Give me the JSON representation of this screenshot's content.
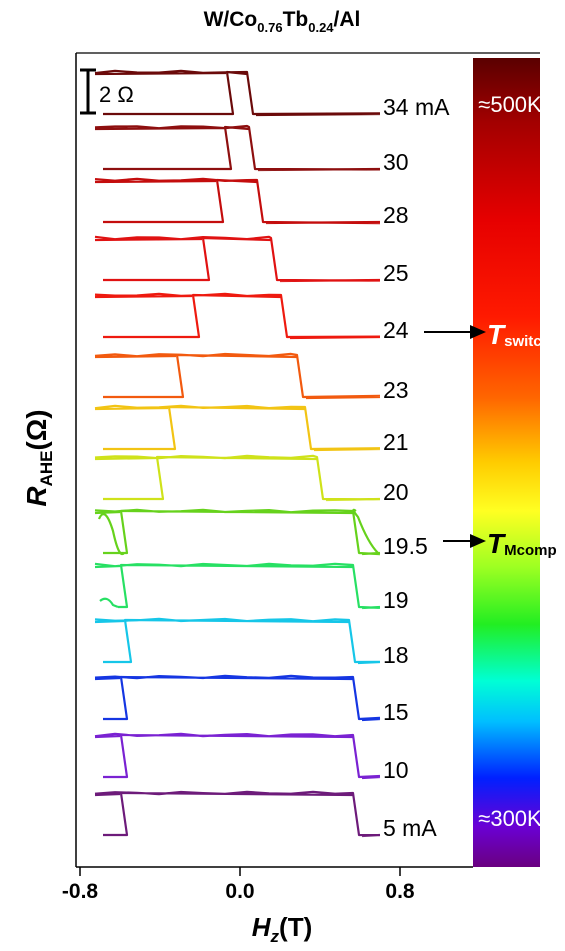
{
  "chart_data": {
    "type": "line",
    "title": "W/Co0.76Tb0.24/Al",
    "title_parts": {
      "base": "W/Co",
      "sub1": "0.76",
      "mid": "Tb",
      "sub2": "0.24",
      "tail": "/Al"
    },
    "xlabel": "Hz(T)",
    "xlabel_parts": {
      "main": "H",
      "sub": "z",
      "unit": "(T)"
    },
    "ylabel": "RAHE(Ω)",
    "ylabel_parts": {
      "main": "R",
      "sub": "AHE",
      "unit": "(Ω)"
    },
    "xlim": [
      -0.8,
      0.8
    ],
    "x_ticks": [
      -0.8,
      0.0,
      0.8
    ],
    "x_tick_labels": [
      "-0.8",
      "0.0",
      "0.8"
    ],
    "scale_bar": {
      "label": "2 Ω",
      "ohms": 2
    },
    "grid": false,
    "legend": "colorbar-right",
    "colorbar": {
      "top_label": "≈500K",
      "bottom_label": "≈300K"
    },
    "annotations": [
      {
        "at_curve": "24",
        "label_main": "T",
        "label_sub": "switch",
        "color": "#ffffff"
      },
      {
        "at_curve": "19.5",
        "label_main": "T",
        "label_sub": "Mcomp",
        "color": "#000000"
      }
    ],
    "series": [
      {
        "name": "34 mA",
        "label": "34 mA",
        "current_mA": 34,
        "coercive_T": 0.05,
        "color": "#6b0a0a",
        "tail": "none"
      },
      {
        "name": "30",
        "label": "30",
        "current_mA": 30,
        "coercive_T": 0.06,
        "color": "#8e0f0f",
        "tail": "none"
      },
      {
        "name": "28",
        "label": "28",
        "current_mA": 28,
        "coercive_T": 0.1,
        "color": "#c40d0d",
        "tail": "none"
      },
      {
        "name": "25",
        "label": "25",
        "current_mA": 25,
        "coercive_T": 0.17,
        "color": "#e01212",
        "tail": "none"
      },
      {
        "name": "24",
        "label": "24",
        "current_mA": 24,
        "coercive_T": 0.22,
        "color": "#ee1a0f",
        "tail": "none"
      },
      {
        "name": "23",
        "label": "23",
        "current_mA": 23,
        "coercive_T": 0.3,
        "color": "#f25a0f",
        "tail": "none"
      },
      {
        "name": "21",
        "label": "21",
        "current_mA": 21,
        "coercive_T": 0.34,
        "color": "#f2c414",
        "tail": "none"
      },
      {
        "name": "20",
        "label": "20",
        "current_mA": 20,
        "coercive_T": 0.4,
        "color": "#cfe21a",
        "tail": "none"
      },
      {
        "name": "19.5",
        "label": "19.5",
        "current_mA": 19.5,
        "coercive_T": 0.58,
        "color": "#66d21c",
        "tail": "wiggle"
      },
      {
        "name": "19",
        "label": "19",
        "current_mA": 19,
        "coercive_T": 0.58,
        "color": "#27e063",
        "tail": "left-dip"
      },
      {
        "name": "18",
        "label": "18",
        "current_mA": 18,
        "coercive_T": 0.56,
        "color": "#16c6e8",
        "tail": "none"
      },
      {
        "name": "15",
        "label": "15",
        "current_mA": 15,
        "coercive_T": 0.58,
        "color": "#1536e2",
        "tail": "none"
      },
      {
        "name": "10",
        "label": "10",
        "current_mA": 10,
        "coercive_T": 0.58,
        "color": "#7a22d2",
        "tail": "none"
      },
      {
        "name": "5 mA",
        "label": "5 mA",
        "current_mA": 5,
        "coercive_T": 0.58,
        "color": "#6d1b7a",
        "tail": "none"
      }
    ]
  }
}
